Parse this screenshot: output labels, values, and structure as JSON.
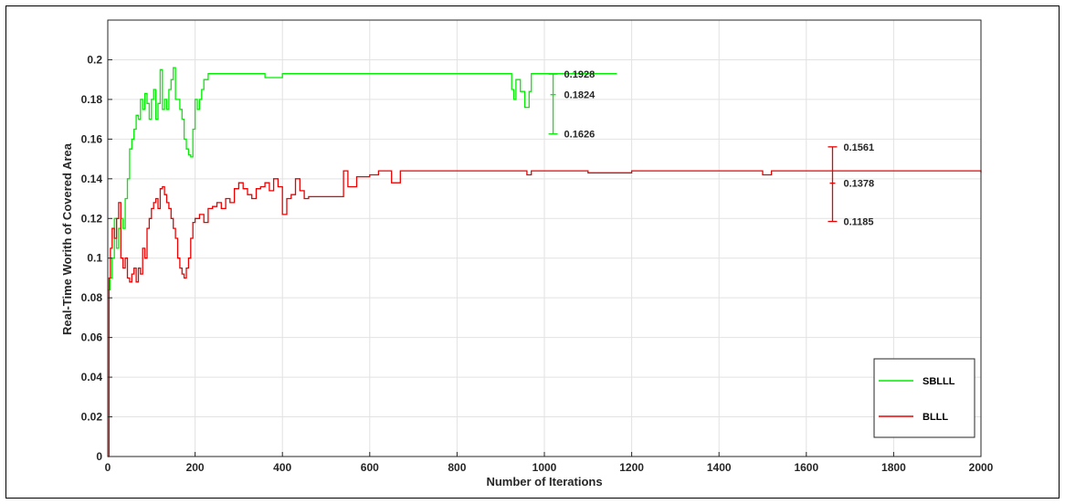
{
  "chart_data": {
    "type": "line",
    "title": "",
    "xlabel": "Number of Iterations",
    "ylabel": "Real-Time Worith of Covered Area",
    "xlim": [
      0,
      2000
    ],
    "ylim": [
      0,
      0.22
    ],
    "grid": true,
    "legend_position": "bottom-right",
    "x_ticks": [
      {
        "value": 0,
        "label": "0"
      },
      {
        "value": 200,
        "label": "200"
      },
      {
        "value": 400,
        "label": "400"
      },
      {
        "value": 600,
        "label": "600"
      },
      {
        "value": 800,
        "label": "800"
      },
      {
        "value": 1000,
        "label": "1000"
      },
      {
        "value": 1200,
        "label": "1200"
      },
      {
        "value": 1400,
        "label": "1400"
      },
      {
        "value": 1600,
        "label": "1600"
      },
      {
        "value": 1800,
        "label": "1800"
      },
      {
        "value": 2000,
        "label": "2000"
      }
    ],
    "y_ticks": [
      {
        "value": 0,
        "label": "0"
      },
      {
        "value": 0.02,
        "label": "0.02"
      },
      {
        "value": 0.04,
        "label": "0.04"
      },
      {
        "value": 0.06,
        "label": "0.06"
      },
      {
        "value": 0.08,
        "label": "0.08"
      },
      {
        "value": 0.1,
        "label": "0.1"
      },
      {
        "value": 0.12,
        "label": "0.12"
      },
      {
        "value": 0.14,
        "label": "0.14"
      },
      {
        "value": 0.16,
        "label": "0.16"
      },
      {
        "value": 0.18,
        "label": "0.18"
      },
      {
        "value": 0.2,
        "label": "0.2"
      }
    ],
    "series": [
      {
        "name": "SBLLL",
        "color": "#00ee00",
        "x": [
          0,
          5,
          10,
          15,
          20,
          25,
          30,
          35,
          40,
          45,
          50,
          55,
          60,
          65,
          70,
          75,
          80,
          85,
          90,
          95,
          100,
          105,
          110,
          115,
          120,
          125,
          130,
          135,
          140,
          145,
          150,
          155,
          160,
          165,
          170,
          175,
          180,
          185,
          190,
          195,
          200,
          205,
          210,
          215,
          220,
          230,
          250,
          300,
          350,
          360,
          400,
          500,
          600,
          700,
          800,
          900,
          920,
          925,
          930,
          935,
          940,
          945,
          950,
          955,
          960,
          965,
          970,
          975,
          980,
          1000,
          1100,
          1166
        ],
        "y": [
          0.084,
          0.09,
          0.1,
          0.12,
          0.105,
          0.115,
          0.12,
          0.115,
          0.13,
          0.14,
          0.155,
          0.16,
          0.165,
          0.172,
          0.17,
          0.18,
          0.175,
          0.183,
          0.178,
          0.17,
          0.18,
          0.185,
          0.17,
          0.178,
          0.195,
          0.175,
          0.18,
          0.175,
          0.185,
          0.19,
          0.196,
          0.18,
          0.18,
          0.175,
          0.17,
          0.16,
          0.155,
          0.152,
          0.151,
          0.165,
          0.18,
          0.175,
          0.18,
          0.185,
          0.19,
          0.193,
          0.193,
          0.193,
          0.193,
          0.191,
          0.193,
          0.193,
          0.193,
          0.193,
          0.193,
          0.193,
          0.193,
          0.185,
          0.18,
          0.19,
          0.19,
          0.184,
          0.184,
          0.176,
          0.176,
          0.184,
          0.193,
          0.193,
          0.193,
          0.193,
          0.193,
          0.193
        ]
      },
      {
        "name": "BLLL",
        "color": "#ee0000",
        "x": [
          0,
          3,
          6,
          10,
          15,
          20,
          25,
          30,
          35,
          40,
          45,
          50,
          55,
          60,
          65,
          70,
          75,
          80,
          85,
          90,
          95,
          100,
          105,
          110,
          115,
          120,
          125,
          130,
          135,
          140,
          145,
          150,
          155,
          160,
          165,
          170,
          175,
          180,
          185,
          190,
          195,
          200,
          205,
          210,
          220,
          230,
          240,
          250,
          260,
          270,
          280,
          290,
          300,
          310,
          320,
          330,
          340,
          350,
          360,
          370,
          380,
          390,
          400,
          410,
          420,
          430,
          440,
          450,
          460,
          480,
          500,
          520,
          540,
          550,
          560,
          570,
          580,
          600,
          620,
          640,
          650,
          660,
          670,
          680,
          700,
          800,
          900,
          950,
          960,
          970,
          1000,
          1050,
          1100,
          1200,
          1300,
          1400,
          1480,
          1500,
          1520,
          1600,
          1700,
          1800,
          1900,
          1960,
          1980,
          2000
        ],
        "y": [
          0.0,
          0.09,
          0.105,
          0.115,
          0.11,
          0.12,
          0.128,
          0.1,
          0.095,
          0.1,
          0.09,
          0.088,
          0.092,
          0.095,
          0.088,
          0.095,
          0.092,
          0.105,
          0.1,
          0.115,
          0.12,
          0.125,
          0.128,
          0.13,
          0.125,
          0.135,
          0.136,
          0.132,
          0.128,
          0.125,
          0.12,
          0.115,
          0.11,
          0.1,
          0.095,
          0.092,
          0.09,
          0.095,
          0.1,
          0.11,
          0.118,
          0.12,
          0.12,
          0.122,
          0.118,
          0.125,
          0.126,
          0.128,
          0.125,
          0.13,
          0.128,
          0.135,
          0.138,
          0.135,
          0.132,
          0.13,
          0.135,
          0.136,
          0.138,
          0.134,
          0.14,
          0.136,
          0.122,
          0.13,
          0.132,
          0.14,
          0.134,
          0.13,
          0.131,
          0.131,
          0.131,
          0.131,
          0.144,
          0.136,
          0.136,
          0.141,
          0.141,
          0.142,
          0.144,
          0.144,
          0.138,
          0.138,
          0.144,
          0.144,
          0.144,
          0.144,
          0.144,
          0.144,
          0.142,
          0.144,
          0.144,
          0.144,
          0.143,
          0.144,
          0.144,
          0.144,
          0.144,
          0.142,
          0.144,
          0.144,
          0.144,
          0.144,
          0.144,
          0.144,
          0.144,
          0.143
        ]
      }
    ],
    "error_bars": [
      {
        "series": "SBLLL",
        "x": 1020,
        "lower": 0.1626,
        "mean": 0.1824,
        "upper": 0.1928,
        "color": "#00ee00",
        "labels": {
          "upper": "0.1928",
          "mean": "0.1824",
          "lower": "0.1626"
        }
      },
      {
        "series": "BLLL",
        "x": 1660,
        "lower": 0.1185,
        "mean": 0.1378,
        "upper": 0.1561,
        "color": "#ee0000",
        "labels": {
          "upper": "0.1561",
          "mean": "0.1378",
          "lower": "0.1185"
        }
      }
    ],
    "legend": [
      {
        "label": "SBLLL",
        "color": "#00ee00"
      },
      {
        "label": "BLLL",
        "color": "#ee0000"
      }
    ]
  }
}
